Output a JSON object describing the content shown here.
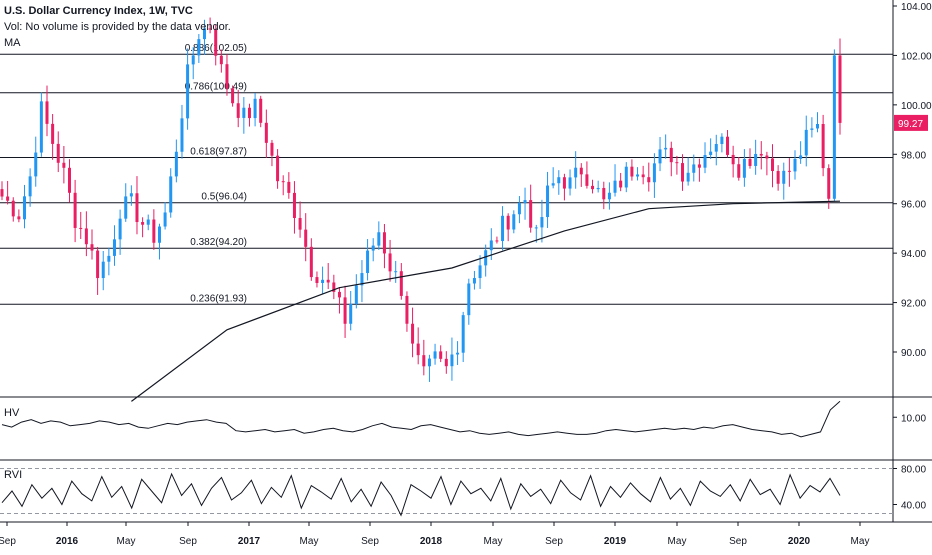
{
  "legend": {
    "title": "U.S. Dollar Currency Index, 1W, TVC",
    "volume_note": "Vol: No volume is provided by the data vendor.",
    "ma_label": "MA"
  },
  "panes": {
    "hv_label": "HV",
    "rvi_label": "RVI"
  },
  "colors": {
    "up": "#2196f3",
    "down": "#e91e63",
    "line": "#131722",
    "grid": "#e0e3eb",
    "price_tag_bg": "#e91e63"
  },
  "chart_data": [
    {
      "type": "candlestick",
      "title": "U.S. Dollar Currency Index, 1W, TVC",
      "ylim": [
        88.0,
        104.0
      ],
      "y_ticks": [
        "104.00",
        "102.00",
        "100.00",
        "98.00",
        "96.00",
        "94.00",
        "92.00",
        "90.00"
      ],
      "last_price": "99.27",
      "x_tick_labels": [
        "Sep",
        "2016",
        "May",
        "Sep",
        "2017",
        "May",
        "Sep",
        "2018",
        "May",
        "Sep",
        "2019",
        "May",
        "Sep",
        "2020",
        "May"
      ],
      "fib_levels": [
        {
          "label": "0.886(102.05)",
          "value": 102.05
        },
        {
          "label": "0.786(100.49)",
          "value": 100.49
        },
        {
          "label": "0.618(97.87)",
          "value": 97.87
        },
        {
          "label": "0.5(96.04)",
          "value": 96.04
        },
        {
          "label": "0.382(94.20)",
          "value": 94.2
        },
        {
          "label": "0.236(91.93)",
          "value": 91.93
        }
      ],
      "price_path": [
        [
          0,
          96.3
        ],
        [
          3,
          95.6
        ],
        [
          5,
          97.1
        ],
        [
          7,
          99.8
        ],
        [
          9,
          98.5
        ],
        [
          11,
          97.2
        ],
        [
          13,
          95.4
        ],
        [
          15,
          94.6
        ],
        [
          17,
          93.3
        ],
        [
          19,
          93.9
        ],
        [
          21,
          95.8
        ],
        [
          23,
          96.0
        ],
        [
          25,
          95.2
        ],
        [
          27,
          94.7
        ],
        [
          29,
          95.6
        ],
        [
          31,
          98.3
        ],
        [
          33,
          101.2
        ],
        [
          35,
          102.9
        ],
        [
          37,
          103.2
        ],
        [
          39,
          101.4
        ],
        [
          41,
          100.2
        ],
        [
          43,
          99.5
        ],
        [
          45,
          99.9
        ],
        [
          47,
          98.7
        ],
        [
          49,
          97.0
        ],
        [
          51,
          96.3
        ],
        [
          53,
          95.2
        ],
        [
          55,
          93.4
        ],
        [
          57,
          93.0
        ],
        [
          59,
          92.3
        ],
        [
          61,
          91.3
        ],
        [
          63,
          92.7
        ],
        [
          65,
          93.8
        ],
        [
          67,
          94.9
        ],
        [
          69,
          93.5
        ],
        [
          71,
          92.6
        ],
        [
          73,
          90.1
        ],
        [
          75,
          89.0
        ],
        [
          77,
          89.7
        ],
        [
          79,
          89.3
        ],
        [
          81,
          90.4
        ],
        [
          83,
          92.9
        ],
        [
          85,
          93.6
        ],
        [
          87,
          94.3
        ],
        [
          89,
          95.1
        ],
        [
          91,
          95.7
        ],
        [
          93,
          96.2
        ],
        [
          95,
          94.6
        ],
        [
          97,
          96.4
        ],
        [
          99,
          97.1
        ],
        [
          101,
          96.8
        ],
        [
          103,
          97.4
        ],
        [
          105,
          96.9
        ],
        [
          107,
          96.0
        ],
        [
          109,
          96.6
        ],
        [
          111,
          97.2
        ],
        [
          113,
          97.6
        ],
        [
          115,
          97.3
        ],
        [
          117,
          97.9
        ],
        [
          119,
          98.0
        ],
        [
          121,
          97.3
        ],
        [
          123,
          97.6
        ],
        [
          125,
          98.1
        ],
        [
          127,
          98.6
        ],
        [
          129,
          98.3
        ],
        [
          131,
          97.5
        ],
        [
          133,
          97.9
        ],
        [
          135,
          98.3
        ],
        [
          137,
          97.4
        ],
        [
          139,
          97.1
        ],
        [
          141,
          97.6
        ],
        [
          143,
          98.6
        ],
        [
          145,
          99.1
        ],
        [
          147,
          96.2
        ],
        [
          148,
          102.0
        ],
        [
          149,
          99.27
        ]
      ],
      "ma_path": [
        [
          23,
          88.0
        ],
        [
          40,
          90.9
        ],
        [
          60,
          92.6
        ],
        [
          80,
          93.4
        ],
        [
          100,
          94.9
        ],
        [
          115,
          95.8
        ],
        [
          130,
          96.0
        ],
        [
          149,
          96.1
        ]
      ]
    },
    {
      "type": "line",
      "title": "HV",
      "y_ticks": [
        "10.00"
      ],
      "ylim": [
        7.0,
        11.0
      ],
      "values": [
        9.4,
        9.2,
        9.6,
        9.8,
        9.5,
        9.7,
        9.6,
        9.3,
        9.4,
        9.5,
        9.7,
        9.6,
        9.4,
        9.5,
        9.2,
        9.1,
        9.3,
        9.5,
        9.4,
        9.6,
        9.7,
        9.8,
        9.6,
        9.5,
        8.9,
        8.8,
        8.9,
        9.0,
        8.8,
        8.9,
        9.0,
        8.7,
        8.8,
        9.0,
        9.1,
        8.9,
        8.8,
        9.0,
        9.3,
        9.5,
        9.2,
        9.1,
        9.0,
        9.3,
        9.4,
        9.2,
        9.0,
        8.8,
        8.9,
        8.7,
        8.6,
        8.7,
        8.8,
        8.6,
        8.5,
        8.6,
        8.7,
        8.8,
        8.7,
        8.6,
        8.6,
        8.7,
        8.9,
        9.0,
        8.9,
        8.8,
        8.9,
        9.0,
        9.1,
        9.0,
        9.1,
        9.0,
        9.2,
        9.1,
        9.3,
        9.4,
        9.2,
        9.0,
        8.9,
        8.8,
        8.6,
        8.7,
        8.4,
        8.6,
        8.8,
        10.6,
        11.3
      ]
    },
    {
      "type": "line",
      "title": "RVI",
      "y_ticks": [
        "80.00",
        "40.00"
      ],
      "ylim": [
        25,
        85
      ],
      "bands": [
        80.0,
        30.0
      ],
      "values": [
        42,
        55,
        38,
        62,
        47,
        58,
        40,
        66,
        52,
        44,
        71,
        48,
        60,
        36,
        68,
        55,
        42,
        74,
        50,
        63,
        39,
        58,
        70,
        45,
        53,
        67,
        41,
        59,
        48,
        72,
        36,
        61,
        54,
        46,
        69,
        43,
        57,
        38,
        65,
        50,
        28,
        62,
        55,
        47,
        71,
        40,
        66,
        52,
        58,
        44,
        69,
        35,
        63,
        49,
        57,
        41,
        67,
        53,
        45,
        72,
        38,
        60,
        48,
        64,
        52,
        43,
        70,
        46,
        58,
        39,
        66,
        55,
        49,
        62,
        44,
        68,
        51,
        57,
        40,
        73,
        47,
        61,
        54,
        69,
        50
      ]
    }
  ]
}
